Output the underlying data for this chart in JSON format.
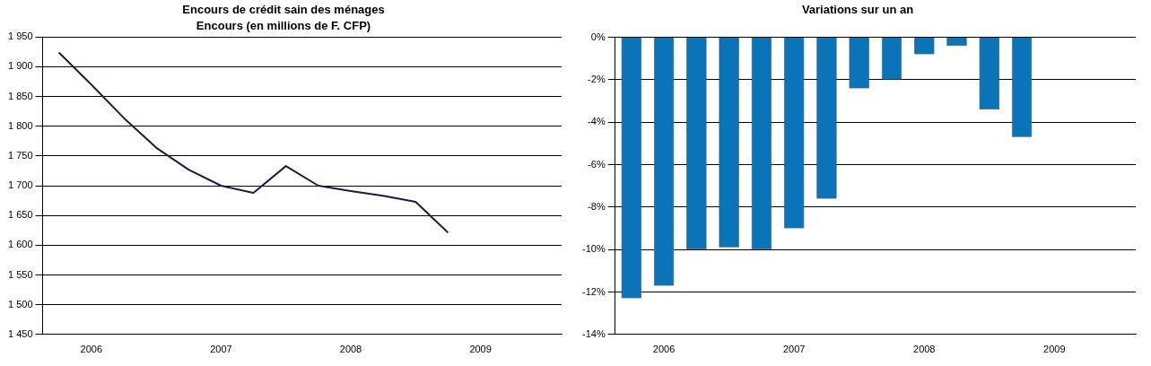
{
  "chart_data": [
    {
      "type": "line",
      "title": "Encours de crédit sain des ménages",
      "subtitle": "Encours (en millions de F. CFP)",
      "categories": [
        null,
        "2006",
        null,
        null,
        null,
        "2007",
        null,
        null,
        null,
        "2008",
        null,
        null,
        null,
        "2009",
        null,
        null
      ],
      "series": [
        {
          "color": "#1a1a4a",
          "values": [
            1924,
            1870,
            1814,
            1764,
            1727,
            1700,
            1688,
            1733,
            1700,
            1691,
            1683,
            1673,
            1621,
            null,
            null,
            null
          ]
        }
      ],
      "ylim": [
        1450,
        1950
      ],
      "yticks": [
        {
          "value": 1450,
          "label": "1 450"
        },
        {
          "value": 1500,
          "label": "1 500"
        },
        {
          "value": 1550,
          "label": "1 550"
        },
        {
          "value": 1600,
          "label": "1 600"
        },
        {
          "value": 1650,
          "label": "1 650"
        },
        {
          "value": 1700,
          "label": "1 700"
        },
        {
          "value": 1750,
          "label": "1 750"
        },
        {
          "value": 1800,
          "label": "1 800"
        },
        {
          "value": 1850,
          "label": "1 850"
        },
        {
          "value": 1900,
          "label": "1 900"
        },
        {
          "value": 1950,
          "label": "1 950"
        }
      ],
      "grid": "y",
      "legend": false,
      "marker": "none",
      "line_style": "solid"
    },
    {
      "type": "bar",
      "title": "Variations sur un an",
      "categories": [
        null,
        "2006",
        null,
        null,
        null,
        "2007",
        null,
        null,
        null,
        "2008",
        null,
        null,
        null,
        "2009",
        null,
        null
      ],
      "series": [
        {
          "color": "#0b74b8",
          "values": [
            -12.3,
            -11.7,
            -10.0,
            -9.9,
            -10.0,
            -9.0,
            -7.6,
            -2.4,
            -2.0,
            -0.8,
            -0.4,
            -3.4,
            -4.7,
            null,
            null,
            null
          ]
        }
      ],
      "ylim": [
        -14,
        0
      ],
      "yticks": [
        {
          "value": -14,
          "label": "-14%"
        },
        {
          "value": -12,
          "label": "-12%"
        },
        {
          "value": -10,
          "label": "-10%"
        },
        {
          "value": -8,
          "label": "-8%"
        },
        {
          "value": -6,
          "label": "-6%"
        },
        {
          "value": -4,
          "label": "-4%"
        },
        {
          "value": -2,
          "label": "-2%"
        },
        {
          "value": 0,
          "label": "0%"
        }
      ],
      "grid": "y",
      "legend": false
    }
  ]
}
